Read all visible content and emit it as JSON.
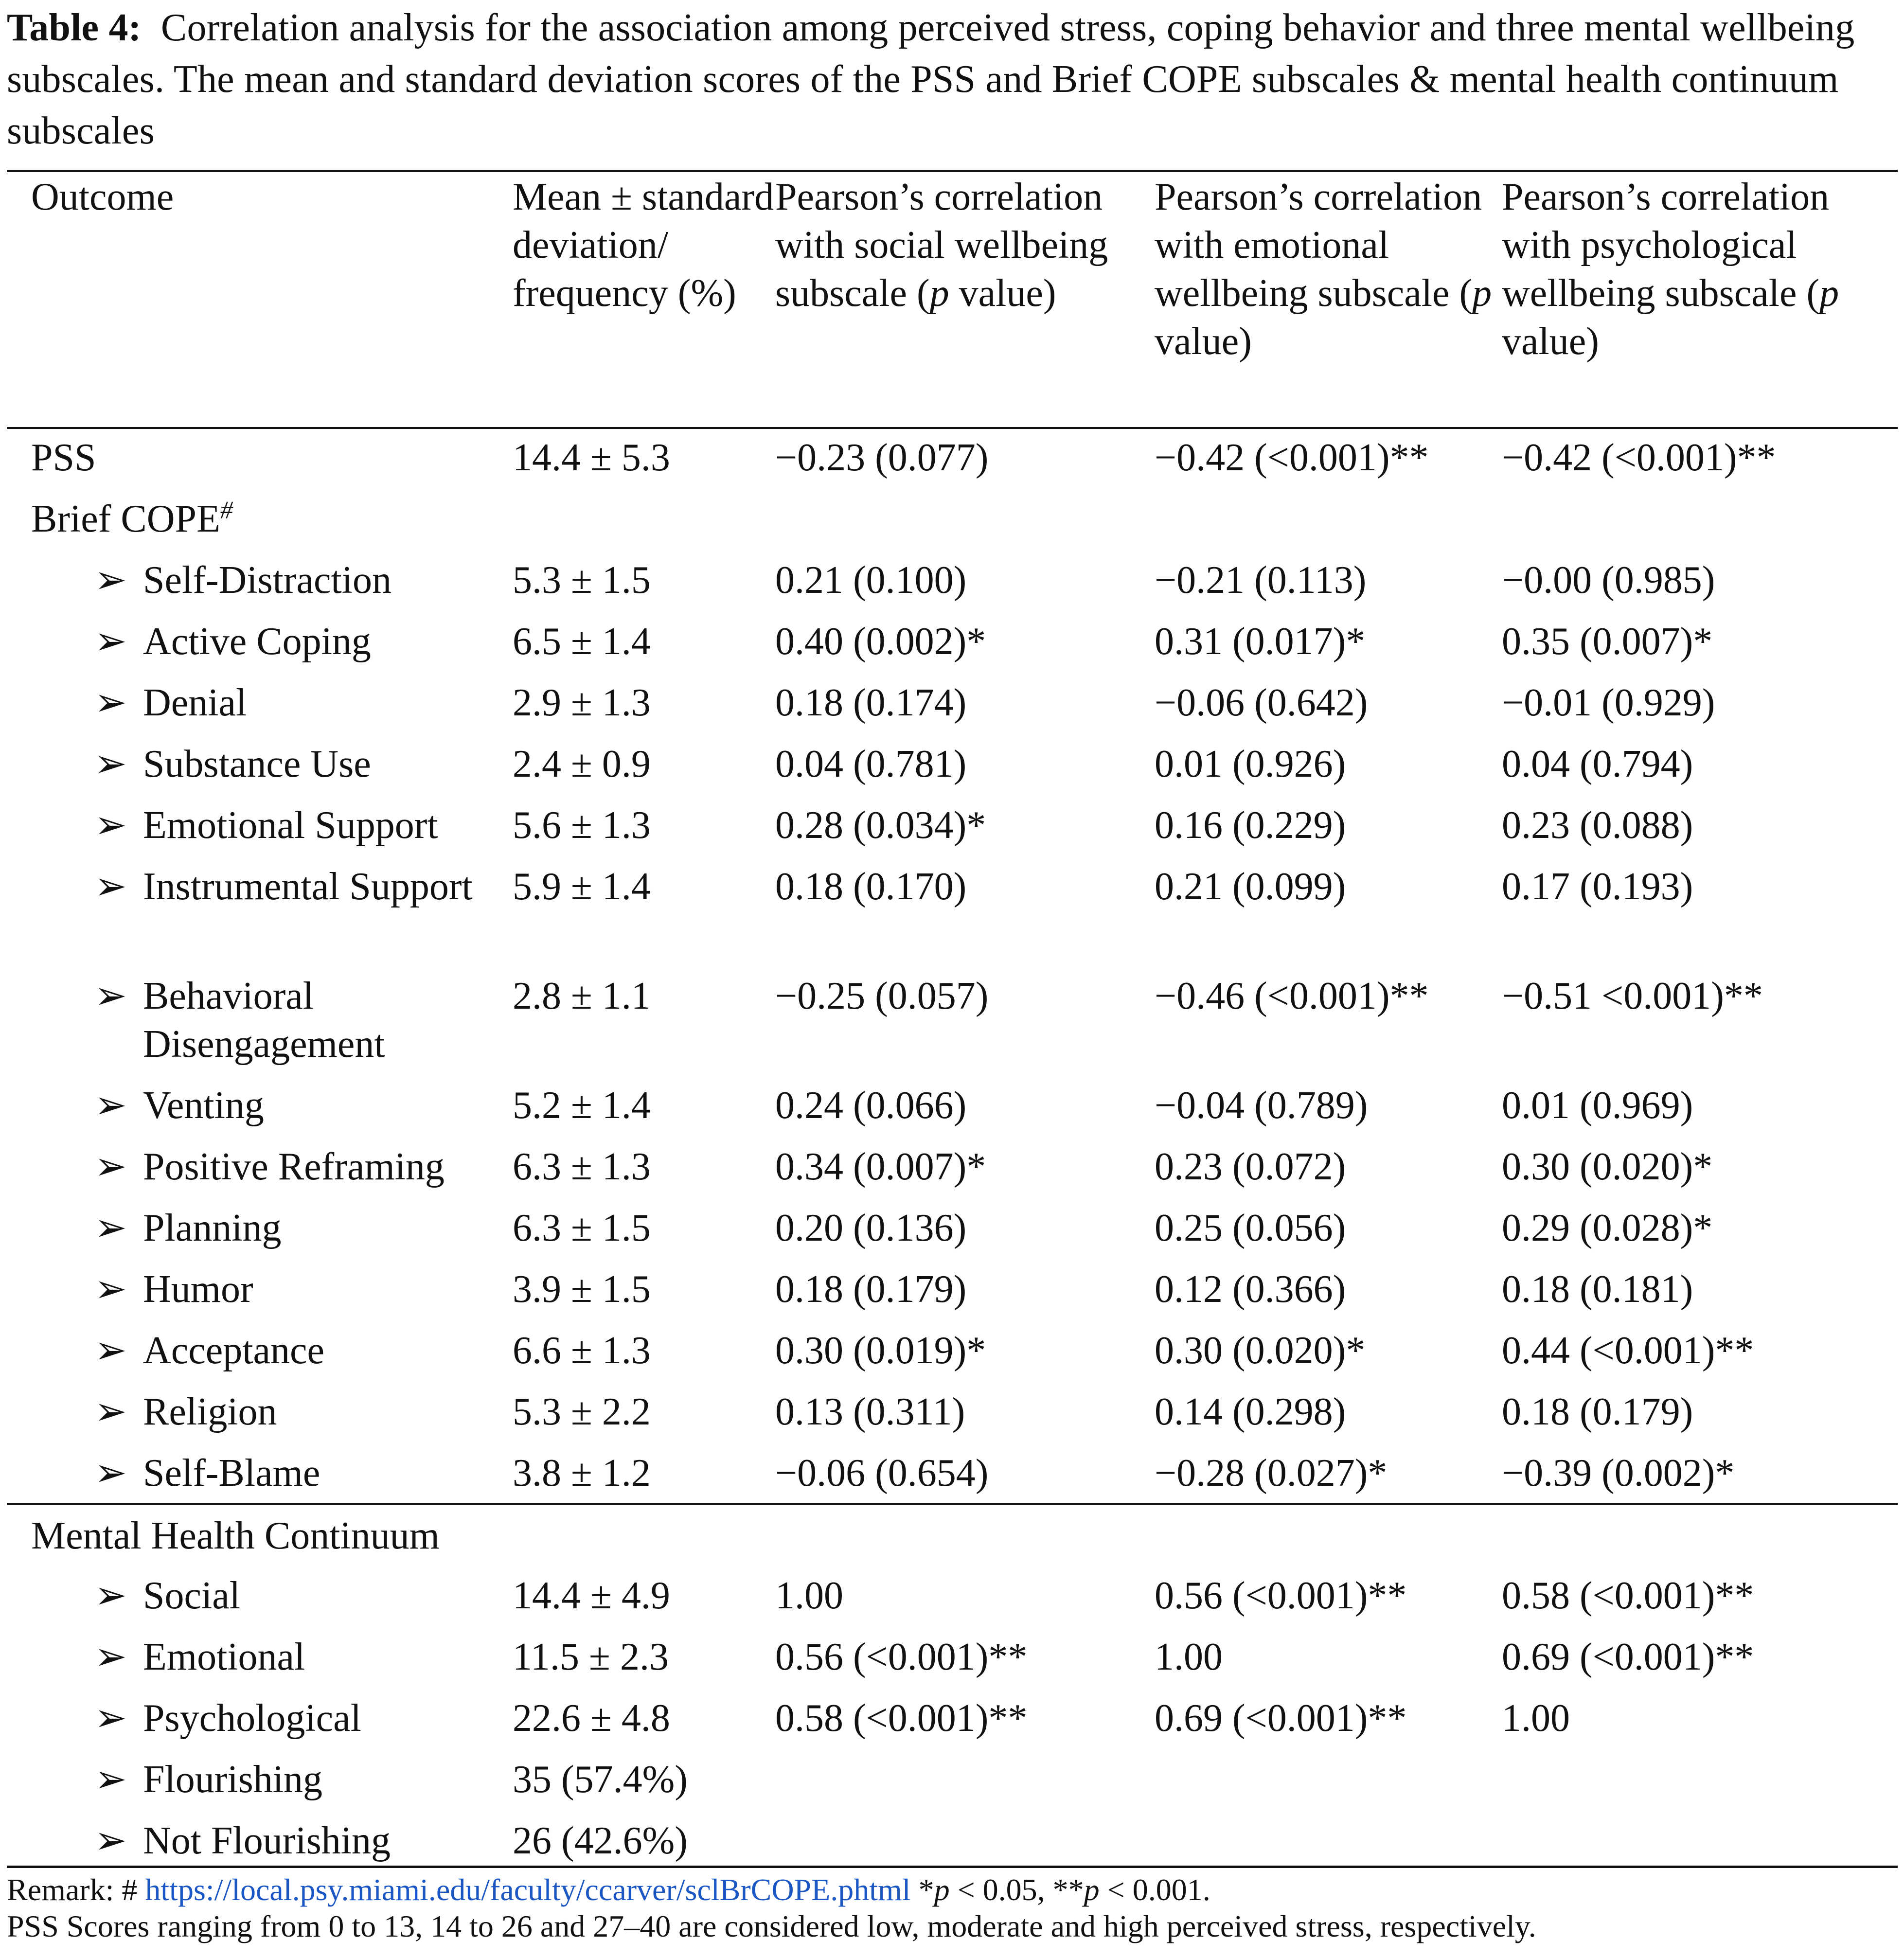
{
  "caption": {
    "label": "Table 4:",
    "text": "Correlation analysis for the association among perceived stress, coping behavior and three mental wellbeing subscales. The mean and standard deviation scores of the PSS and Brief COPE subscales & mental health continuum subscales"
  },
  "header": {
    "col1": "Outcome",
    "col2": "Mean ± standard deviation/ frequency (%)",
    "col3_pre": "Pearson’s correlation with social wellbeing subscale (",
    "col3_post": " value)",
    "col4_pre": "Pearson’s correlation with emotional wellbeing subscale (",
    "col4_post": " value)",
    "col5_pre": "Pearson’s correlation with psychological wellbeing subscale (",
    "col5_post": " value)",
    "p": "p"
  },
  "pss_row": {
    "label": "PSS",
    "mean": "14.4 ± 5.3",
    "social": "−0.23 (0.077)",
    "emotional": "−0.42 (<0.001)**",
    "psychological": "−0.42 (<0.001)**"
  },
  "brief_cope": {
    "title": "Brief COPE",
    "sup": "#",
    "arrow": "➢",
    "rows": [
      {
        "label": "Self-Distraction",
        "mean": "5.3 ± 1.5",
        "social": "0.21 (0.100)",
        "emotional": "−0.21 (0.113)",
        "psychological": "−0.00 (0.985)"
      },
      {
        "label": "Active Coping",
        "mean": "6.5 ± 1.4",
        "social": "0.40 (0.002)*",
        "emotional": "0.31 (0.017)*",
        "psychological": "0.35 (0.007)*"
      },
      {
        "label": "Denial",
        "mean": "2.9 ± 1.3",
        "social": "0.18 (0.174)",
        "emotional": "−0.06 (0.642)",
        "psychological": "−0.01 (0.929)"
      },
      {
        "label": "Substance Use",
        "mean": "2.4 ± 0.9",
        "social": "0.04 (0.781)",
        "emotional": "0.01 (0.926)",
        "psychological": "0.04 (0.794)"
      },
      {
        "label": "Emotional Support",
        "mean": "5.6 ± 1.3",
        "social": "0.28 (0.034)*",
        "emotional": "0.16 (0.229)",
        "psychological": "0.23 (0.088)"
      },
      {
        "label": "Instrumental Support",
        "mean": "5.9 ± 1.4",
        "social": "0.18 (0.170)",
        "emotional": "0.21 (0.099)",
        "psychological": "0.17 (0.193)"
      },
      {
        "label": "Behavioral Disengagement",
        "mean": "2.8 ± 1.1",
        "social": "−0.25 (0.057)",
        "emotional": "−0.46 (<0.001)**",
        "psychological": "−0.51 <0.001)**"
      },
      {
        "label": "Venting",
        "mean": "5.2 ± 1.4",
        "social": "0.24 (0.066)",
        "emotional": "−0.04 (0.789)",
        "psychological": "0.01 (0.969)"
      },
      {
        "label": "Positive Reframing",
        "mean": "6.3 ± 1.3",
        "social": "0.34 (0.007)*",
        "emotional": "0.23 (0.072)",
        "psychological": "0.30 (0.020)*"
      },
      {
        "label": "Planning",
        "mean": "6.3 ± 1.5",
        "social": "0.20 (0.136)",
        "emotional": "0.25 (0.056)",
        "psychological": "0.29 (0.028)*"
      },
      {
        "label": "Humor",
        "mean": "3.9 ± 1.5",
        "social": "0.18 (0.179)",
        "emotional": "0.12 (0.366)",
        "psychological": "0.18 (0.181)"
      },
      {
        "label": "Acceptance",
        "mean": "6.6 ± 1.3",
        "social": "0.30 (0.019)*",
        "emotional": "0.30 (0.020)*",
        "psychological": "0.44 (<0.001)**"
      },
      {
        "label": "Religion",
        "mean": "5.3 ± 2.2",
        "social": "0.13 (0.311)",
        "emotional": "0.14 (0.298)",
        "psychological": "0.18 (0.179)"
      },
      {
        "label": "Self-Blame",
        "mean": "3.8 ± 1.2",
        "social": "−0.06 (0.654)",
        "emotional": "−0.28 (0.027)*",
        "psychological": "−0.39 (0.002)*"
      }
    ]
  },
  "mhc": {
    "title": "Mental Health Continuum",
    "rows": [
      {
        "label": "Social",
        "mean": "14.4 ± 4.9",
        "social": "1.00",
        "emotional": "0.56 (<0.001)**",
        "psychological": "0.58 (<0.001)**"
      },
      {
        "label": "Emotional",
        "mean": "11.5 ± 2.3",
        "social": "0.56 (<0.001)**",
        "emotional": "1.00",
        "psychological": "0.69 (<0.001)**"
      },
      {
        "label": "Psychological",
        "mean": "22.6 ± 4.8",
        "social": "0.58 (<0.001)**",
        "emotional": "0.69 (<0.001)**",
        "psychological": "1.00"
      },
      {
        "label": "Flourishing",
        "mean": "35 (57.4%)",
        "social": "",
        "emotional": "",
        "psychological": ""
      },
      {
        "label": "Not Flourishing",
        "mean": "26 (42.6%)",
        "social": "",
        "emotional": "",
        "psychological": ""
      }
    ]
  },
  "remark": {
    "prefix": "Remark: # ",
    "link": "https://local.psy.miami.edu/faculty/ccarver/sclBrCOPE.phtml",
    "sig_a": " *p < 0.05, **p < 0.001.",
    "line2": "PSS Scores ranging from 0 to 13, 14 to 26 and 27–40 are considered low, moderate and high perceived stress, respectively.",
    "link_color": "#1a56c4"
  }
}
